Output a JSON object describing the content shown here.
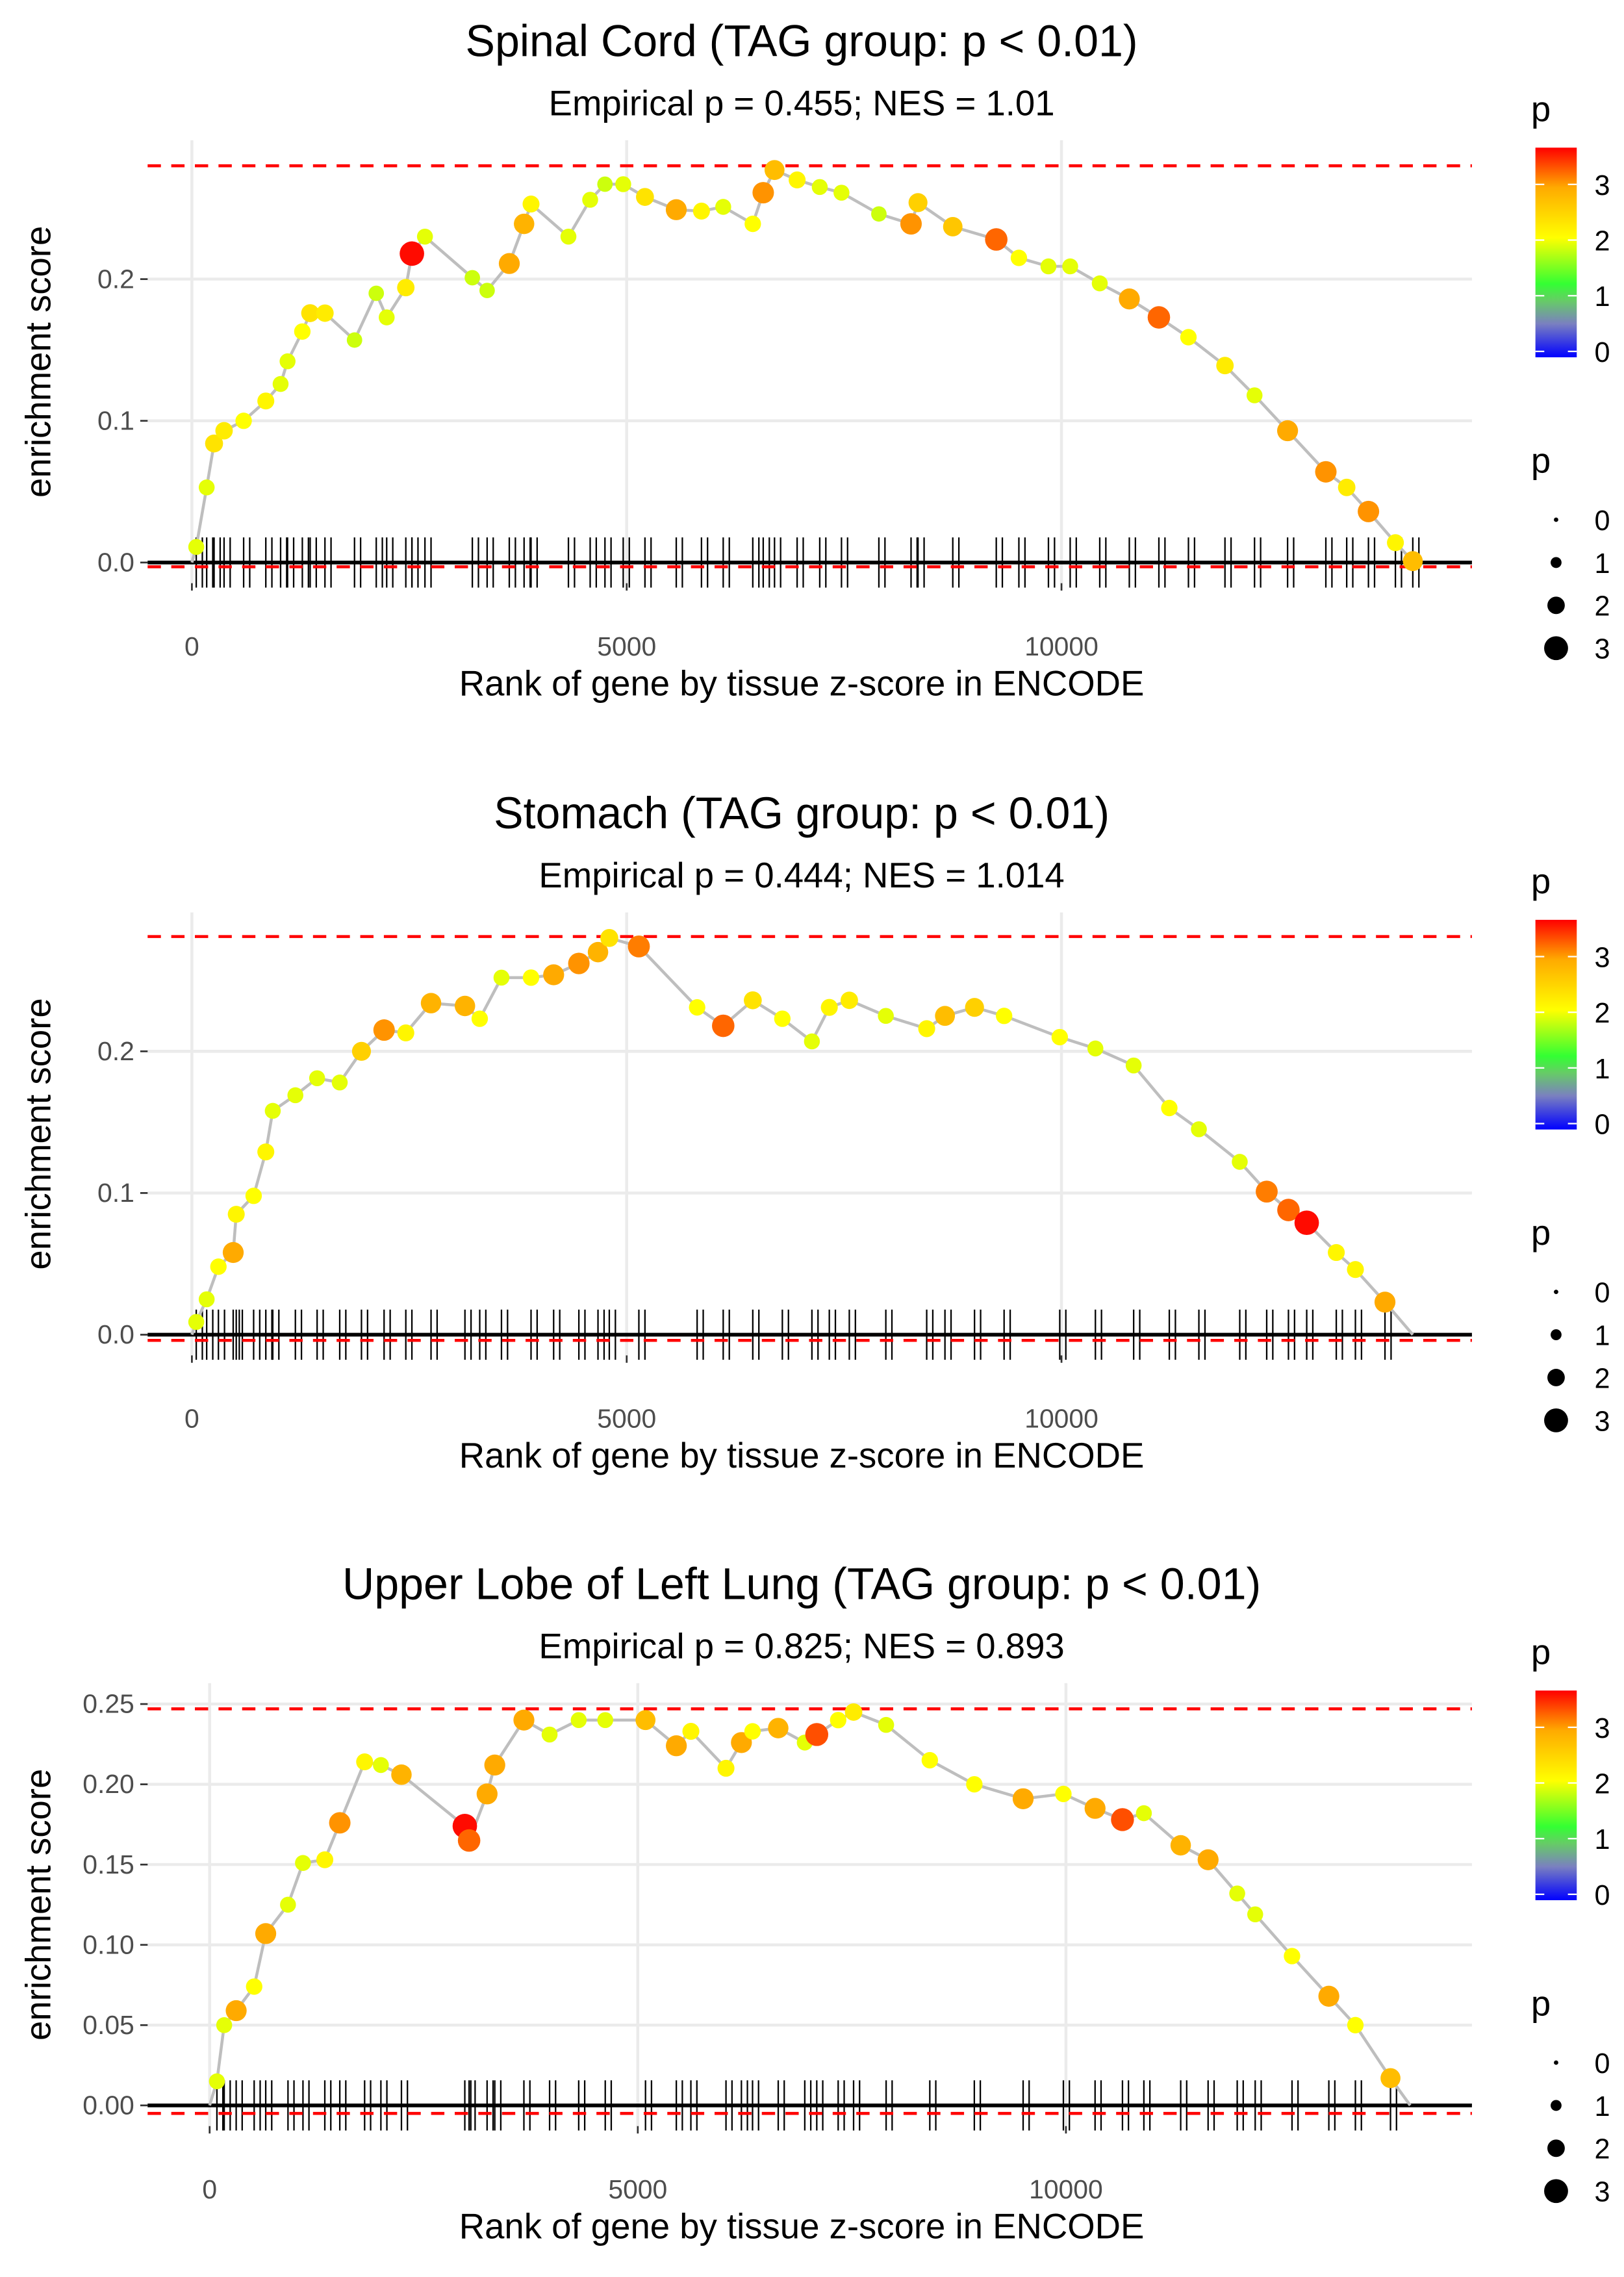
{
  "legend": {
    "color_title": "p",
    "color_ticks": [
      "0",
      "1",
      "2",
      "3"
    ],
    "size_title": "p",
    "size_ticks": [
      "0",
      "1",
      "2",
      "3"
    ]
  },
  "colors": {
    "hit_line": "#000000",
    "curve": "#bebebe",
    "bound": "#ff0000",
    "grid": "#ebebeb"
  },
  "chart_data": [
    {
      "type": "scatter",
      "title": "Spinal Cord (TAG group: p < 0.01)",
      "subtitle": "Empirical p = 0.455; NES = 1.01",
      "xlabel": "Rank of gene by tissue z-score in ENCODE",
      "ylabel": "enrichment score",
      "xlim": [
        -509,
        14720
      ],
      "ylim": [
        -0.0146,
        0.298
      ],
      "xticks": [
        0,
        5000,
        10000
      ],
      "xtick_labels": [
        "0",
        "5000",
        "10000"
      ],
      "yticks": [
        0.0,
        0.1,
        0.2
      ],
      "ytick_labels": [
        "0.0",
        "0.1",
        "0.2"
      ],
      "max_es": 0.28,
      "min_es": -0.003,
      "points_fields": [
        "rank",
        "enrichment_score",
        "p"
      ],
      "points": [
        [
          50,
          0.011,
          2.0
        ],
        [
          170,
          0.053,
          2.0
        ],
        [
          255,
          0.084,
          2.4
        ],
        [
          370,
          0.093,
          2.3
        ],
        [
          595,
          0.1,
          2.1
        ],
        [
          850,
          0.114,
          2.2
        ],
        [
          1020,
          0.126,
          2.0
        ],
        [
          1100,
          0.142,
          2.0
        ],
        [
          1270,
          0.163,
          2.1
        ],
        [
          1360,
          0.176,
          2.4
        ],
        [
          1530,
          0.176,
          2.3
        ],
        [
          1870,
          0.157,
          1.9
        ],
        [
          2120,
          0.19,
          1.9
        ],
        [
          2240,
          0.173,
          2.0
        ],
        [
          2460,
          0.194,
          2.3
        ],
        [
          2530,
          0.218,
          3.7
        ],
        [
          2680,
          0.23,
          2.0
        ],
        [
          3225,
          0.201,
          1.9
        ],
        [
          3395,
          0.192,
          1.9
        ],
        [
          3650,
          0.211,
          3.0
        ],
        [
          3820,
          0.239,
          2.9
        ],
        [
          3900,
          0.253,
          2.2
        ],
        [
          4330,
          0.23,
          2.0
        ],
        [
          4580,
          0.256,
          2.0
        ],
        [
          4750,
          0.267,
          1.9
        ],
        [
          4960,
          0.267,
          2.0
        ],
        [
          5210,
          0.258,
          2.4
        ],
        [
          5570,
          0.249,
          3.0
        ],
        [
          5860,
          0.248,
          2.2
        ],
        [
          6110,
          0.251,
          2.0
        ],
        [
          6450,
          0.239,
          2.1
        ],
        [
          6570,
          0.261,
          3.1
        ],
        [
          6700,
          0.277,
          2.8
        ],
        [
          6960,
          0.27,
          2.2
        ],
        [
          7220,
          0.265,
          2.0
        ],
        [
          7470,
          0.261,
          2.0
        ],
        [
          7900,
          0.246,
          1.9
        ],
        [
          8270,
          0.239,
          3.1
        ],
        [
          8350,
          0.254,
          2.6
        ],
        [
          8750,
          0.237,
          2.7
        ],
        [
          9250,
          0.228,
          3.3
        ],
        [
          9510,
          0.215,
          2.1
        ],
        [
          9850,
          0.209,
          2.0
        ],
        [
          10100,
          0.209,
          2.0
        ],
        [
          10440,
          0.197,
          2.0
        ],
        [
          10780,
          0.186,
          3.0
        ],
        [
          11120,
          0.173,
          3.3
        ],
        [
          11460,
          0.159,
          2.1
        ],
        [
          11880,
          0.139,
          2.3
        ],
        [
          12220,
          0.118,
          2.0
        ],
        [
          12600,
          0.093,
          3.0
        ],
        [
          13040,
          0.064,
          3.1
        ],
        [
          13280,
          0.053,
          2.3
        ],
        [
          13530,
          0.036,
          3.1
        ],
        [
          13840,
          0.014,
          2.2
        ],
        [
          14040,
          0.001,
          2.8
        ]
      ]
    },
    {
      "type": "scatter",
      "title": "Stomach (TAG group: p < 0.01)",
      "subtitle": "Empirical p = 0.444; NES = 1.014",
      "xlabel": "Rank of gene by tissue z-score in ENCODE",
      "ylabel": "enrichment score",
      "xlim": [
        -509,
        14720
      ],
      "ylim": [
        -0.0146,
        0.298
      ],
      "xticks": [
        0,
        5000,
        10000
      ],
      "xtick_labels": [
        "0",
        "5000",
        "10000"
      ],
      "yticks": [
        0.0,
        0.1,
        0.2
      ],
      "ytick_labels": [
        "0.0",
        "0.1",
        "0.2"
      ],
      "max_es": 0.281,
      "min_es": -0.004,
      "points_fields": [
        "rank",
        "enrichment_score",
        "p"
      ],
      "points": [
        [
          50,
          0.009,
          2.0
        ],
        [
          170,
          0.025,
          2.0
        ],
        [
          305,
          0.048,
          2.1
        ],
        [
          475,
          0.058,
          3.0
        ],
        [
          510,
          0.085,
          2.2
        ],
        [
          710,
          0.098,
          2.1
        ],
        [
          850,
          0.129,
          2.2
        ],
        [
          930,
          0.158,
          2.0
        ],
        [
          1190,
          0.169,
          2.0
        ],
        [
          1440,
          0.181,
          2.0
        ],
        [
          1700,
          0.178,
          2.0
        ],
        [
          1950,
          0.2,
          2.6
        ],
        [
          2210,
          0.215,
          3.1
        ],
        [
          2460,
          0.213,
          2.2
        ],
        [
          2750,
          0.234,
          2.9
        ],
        [
          3140,
          0.232,
          2.9
        ],
        [
          3310,
          0.223,
          2.1
        ],
        [
          3560,
          0.252,
          2.0
        ],
        [
          3900,
          0.252,
          2.1
        ],
        [
          4160,
          0.254,
          3.0
        ],
        [
          4450,
          0.262,
          3.1
        ],
        [
          4670,
          0.27,
          2.9
        ],
        [
          4800,
          0.28,
          2.4
        ],
        [
          5140,
          0.274,
          3.2
        ],
        [
          5810,
          0.231,
          2.1
        ],
        [
          6110,
          0.218,
          3.3
        ],
        [
          6450,
          0.236,
          2.4
        ],
        [
          6790,
          0.223,
          2.1
        ],
        [
          7130,
          0.207,
          2.0
        ],
        [
          7330,
          0.231,
          2.2
        ],
        [
          7560,
          0.236,
          2.3
        ],
        [
          7980,
          0.225,
          2.0
        ],
        [
          8450,
          0.216,
          2.2
        ],
        [
          8660,
          0.225,
          2.8
        ],
        [
          9000,
          0.231,
          2.6
        ],
        [
          9340,
          0.225,
          2.1
        ],
        [
          9980,
          0.21,
          2.1
        ],
        [
          10390,
          0.202,
          2.0
        ],
        [
          10830,
          0.19,
          2.0
        ],
        [
          11240,
          0.16,
          2.1
        ],
        [
          11580,
          0.145,
          2.0
        ],
        [
          12050,
          0.122,
          2.0
        ],
        [
          12360,
          0.101,
          3.2
        ],
        [
          12610,
          0.088,
          3.3
        ],
        [
          12820,
          0.079,
          3.7
        ],
        [
          13160,
          0.058,
          2.2
        ],
        [
          13380,
          0.046,
          2.2
        ],
        [
          13720,
          0.023,
          3.0
        ],
        [
          14040,
          0.0,
          0.0
        ]
      ]
    },
    {
      "type": "scatter",
      "title": "Upper Lobe of Left Lung (TAG group: p < 0.01)",
      "subtitle": "Empirical p = 0.825; NES = 0.893",
      "xlabel": "Rank of gene by tissue z-score in ENCODE",
      "ylabel": "enrichment score",
      "xlim": [
        -724,
        14741
      ],
      "ylim": [
        -0.0129,
        0.263
      ],
      "xticks": [
        0,
        5000,
        10000
      ],
      "xtick_labels": [
        "0",
        "5000",
        "10000"
      ],
      "yticks": [
        0.0,
        0.05,
        0.1,
        0.15,
        0.2,
        0.25
      ],
      "ytick_labels": [
        "0.00",
        "0.05",
        "0.10",
        "0.15",
        "0.20",
        "0.25"
      ],
      "max_es": 0.247,
      "min_es": -0.005,
      "points_fields": [
        "rank",
        "enrichment_score",
        "p"
      ],
      "points": [
        [
          85,
          0.015,
          2.0
        ],
        [
          170,
          0.05,
          2.0
        ],
        [
          310,
          0.059,
          3.0
        ],
        [
          520,
          0.074,
          2.1
        ],
        [
          655,
          0.107,
          3.0
        ],
        [
          915,
          0.125,
          2.0
        ],
        [
          1090,
          0.151,
          2.0
        ],
        [
          1345,
          0.153,
          2.2
        ],
        [
          1520,
          0.176,
          3.1
        ],
        [
          1810,
          0.214,
          2.2
        ],
        [
          2000,
          0.212,
          2.0
        ],
        [
          2240,
          0.206,
          2.9
        ],
        [
          2980,
          0.174,
          3.7
        ],
        [
          3030,
          0.165,
          3.3
        ],
        [
          3240,
          0.194,
          3.0
        ],
        [
          3330,
          0.212,
          3.0
        ],
        [
          3670,
          0.24,
          3.0
        ],
        [
          3970,
          0.231,
          2.0
        ],
        [
          4310,
          0.24,
          2.0
        ],
        [
          4620,
          0.24,
          2.0
        ],
        [
          5090,
          0.24,
          2.8
        ],
        [
          5450,
          0.224,
          3.0
        ],
        [
          5620,
          0.233,
          2.2
        ],
        [
          6030,
          0.21,
          2.2
        ],
        [
          6210,
          0.226,
          3.0
        ],
        [
          6340,
          0.233,
          2.1
        ],
        [
          6640,
          0.235,
          2.9
        ],
        [
          6950,
          0.226,
          2.0
        ],
        [
          7090,
          0.231,
          3.4
        ],
        [
          7340,
          0.24,
          2.1
        ],
        [
          7520,
          0.245,
          2.3
        ],
        [
          7900,
          0.237,
          2.0
        ],
        [
          8410,
          0.215,
          2.1
        ],
        [
          8930,
          0.2,
          2.1
        ],
        [
          9500,
          0.191,
          3.0
        ],
        [
          9970,
          0.194,
          2.1
        ],
        [
          10340,
          0.185,
          3.0
        ],
        [
          10660,
          0.178,
          3.4
        ],
        [
          10910,
          0.182,
          2.0
        ],
        [
          11340,
          0.162,
          2.9
        ],
        [
          11660,
          0.153,
          3.0
        ],
        [
          12000,
          0.132,
          2.0
        ],
        [
          12210,
          0.119,
          2.0
        ],
        [
          12640,
          0.093,
          2.1
        ],
        [
          13070,
          0.068,
          3.0
        ],
        [
          13380,
          0.05,
          2.1
        ],
        [
          13790,
          0.017,
          2.8
        ],
        [
          14020,
          0.0,
          0.0
        ]
      ]
    }
  ]
}
